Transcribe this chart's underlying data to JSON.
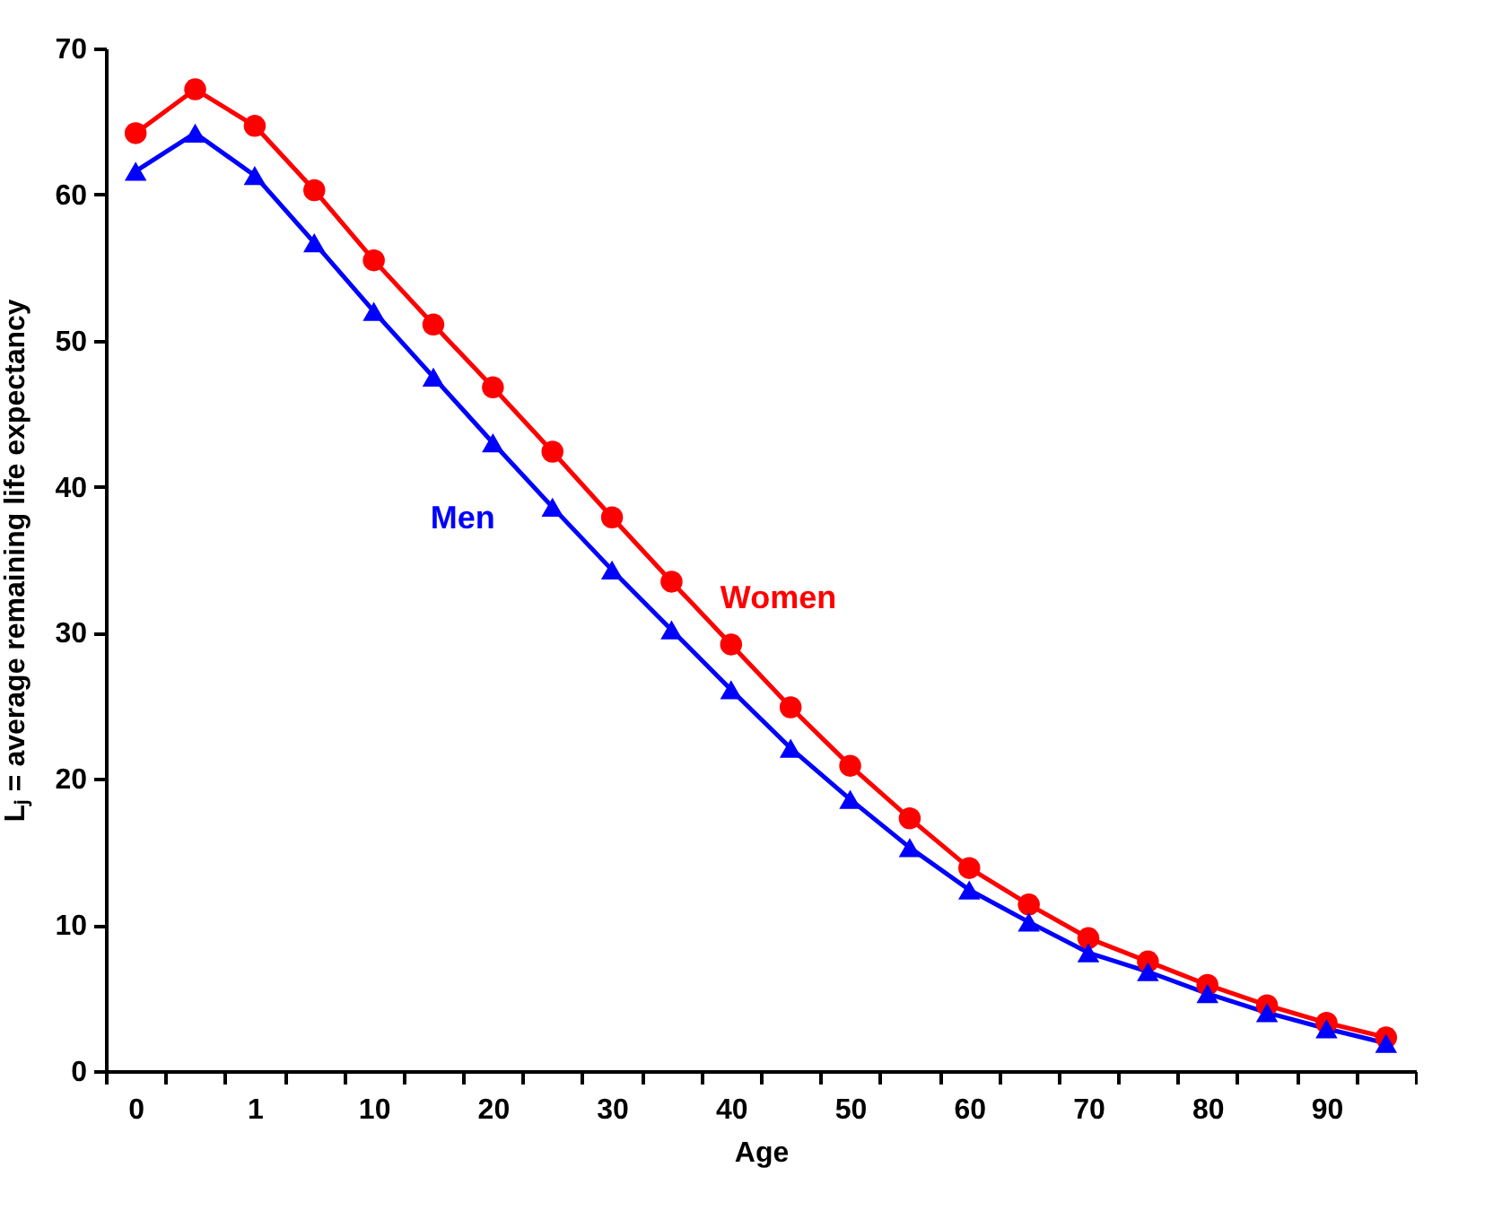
{
  "chart_data": {
    "type": "line",
    "xlabel": "Age",
    "ylabel": "Lⱼ = average remaining life expectancy",
    "categories": [
      "0",
      null,
      "1",
      null,
      "10",
      null,
      "20",
      null,
      "30",
      null,
      "40",
      null,
      "50",
      null,
      "60",
      null,
      "70",
      null,
      "80",
      null,
      "90",
      null
    ],
    "series": [
      {
        "name": "Women",
        "color": "#ff0000",
        "marker": "circle",
        "values": [
          64.2,
          67.2,
          64.7,
          60.3,
          55.5,
          51.1,
          46.8,
          42.4,
          37.9,
          33.5,
          29.2,
          24.9,
          20.9,
          17.3,
          13.9,
          11.4,
          9.1,
          7.5,
          5.9,
          4.5,
          3.3,
          2.3
        ]
      },
      {
        "name": "Men",
        "color": "#0000ff",
        "marker": "triangle",
        "values": [
          61.6,
          64.2,
          61.3,
          56.7,
          52.0,
          47.5,
          43.0,
          38.6,
          34.3,
          30.2,
          26.1,
          22.1,
          18.6,
          15.3,
          12.4,
          10.2,
          8.1,
          6.8,
          5.3,
          4.0,
          2.9,
          1.9
        ]
      }
    ],
    "ylim": [
      0,
      70
    ],
    "yticks": [
      0,
      10,
      20,
      30,
      40,
      50,
      60,
      70
    ],
    "grid": false,
    "legend": false
  }
}
